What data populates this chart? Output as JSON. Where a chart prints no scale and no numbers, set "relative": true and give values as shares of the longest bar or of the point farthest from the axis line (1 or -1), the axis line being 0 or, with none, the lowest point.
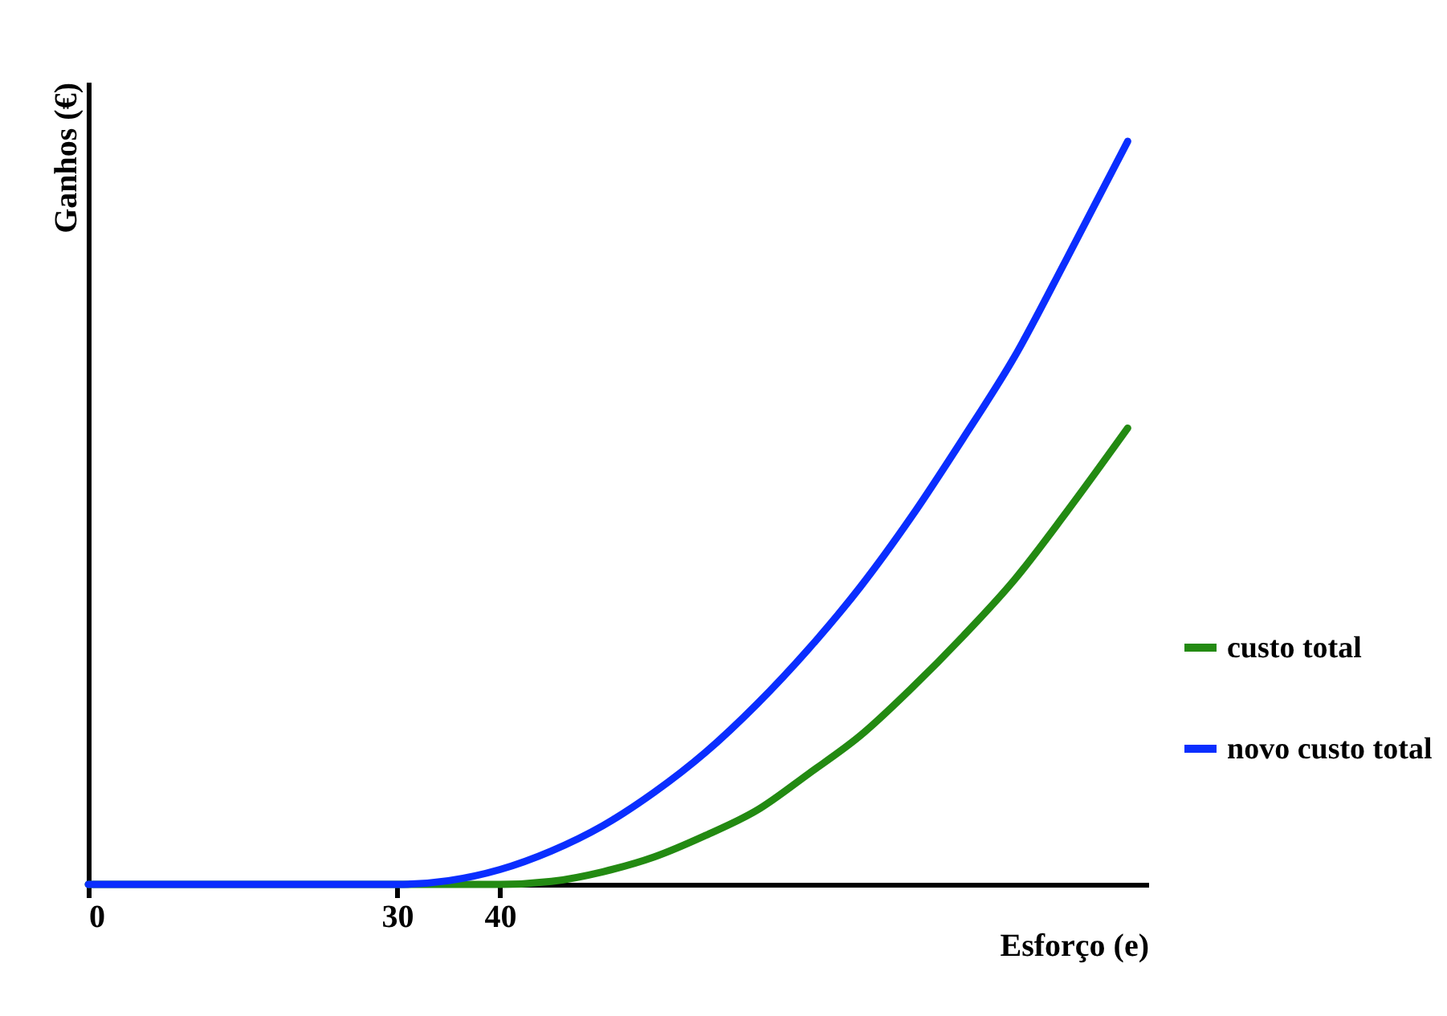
{
  "chart_data": {
    "type": "line",
    "xlabel": "Esforço (e)",
    "ylabel": "Ganhos (€)",
    "relative": true,
    "x": [
      0,
      30,
      35,
      40,
      45,
      50,
      55,
      60,
      65,
      70,
      75,
      80,
      85,
      90,
      95,
      101
    ],
    "xlim": [
      0,
      103
    ],
    "xticks": [
      0,
      30,
      40
    ],
    "grid": false,
    "legend": "right",
    "series": [
      {
        "name": "custo total",
        "color": "#238a12",
        "values": [
          0,
          0,
          0,
          0,
          0.004,
          0.017,
          0.037,
          0.066,
          0.1,
          0.149,
          0.2,
          0.264,
          0.334,
          0.41,
          0.5,
          0.614
        ]
      },
      {
        "name": "novo custo total",
        "color": "#0a2eff",
        "values": [
          0,
          0,
          0.005,
          0.02,
          0.045,
          0.079,
          0.124,
          0.178,
          0.243,
          0.317,
          0.4,
          0.495,
          0.6,
          0.71,
          0.84,
          1
        ]
      }
    ]
  }
}
